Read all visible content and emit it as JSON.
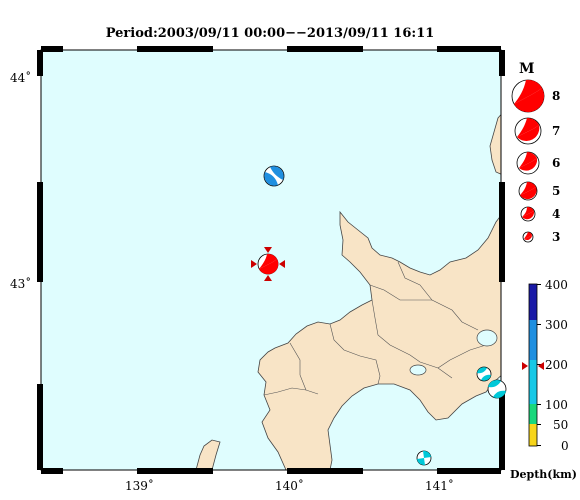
{
  "map": {
    "title": "Period:2003/09/11 00:00−−2013/09/11 16:11",
    "lon_ticks": [
      "139˚",
      "140˚",
      "141˚"
    ],
    "lat_ticks": [
      "44˚",
      "43˚"
    ],
    "colors": {
      "sea": "#dffdfe",
      "land": "#f8e4c6",
      "coast": "#444444",
      "frame": "#000000",
      "mechanism_red": "#ff0000",
      "mechanism_blue": "#1f8fe0",
      "mechanism_cyan": "#00c8d8"
    }
  },
  "magnitude_legend": {
    "title": "M",
    "labels": [
      "8",
      "7",
      "6",
      "5",
      "4",
      "3"
    ]
  },
  "depth_legend": {
    "title": "Depth(km)",
    "labels": [
      "400",
      "300",
      "200",
      "100",
      "50",
      "0"
    ],
    "colors": {
      "0-50": "#f7d51b",
      "50-100": "#19d87c",
      "100-200": "#17c8e6",
      "200-300": "#1f8fe0",
      "300-400": "#1a1aa6"
    }
  },
  "events": [
    {
      "lon": 139.92,
      "lat": 43.53,
      "depth_class": "200-300",
      "magnitude": 5.5,
      "mechanism": "focal-blue"
    },
    {
      "lon": 139.83,
      "lat": 43.08,
      "depth_class": "0-50",
      "magnitude": 6.0,
      "mechanism": "focal-red",
      "highlighted": true
    },
    {
      "lon": 141.4,
      "lat": 42.54,
      "depth_class": "100-200",
      "magnitude": 4.8,
      "mechanism": "focal-cyan"
    },
    {
      "lon": 141.5,
      "lat": 42.49,
      "depth_class": "100-200",
      "magnitude": 5.2,
      "mechanism": "focal-cyan"
    },
    {
      "lon": 140.93,
      "lat": 42.1,
      "depth_class": "100-200",
      "magnitude": 4.5,
      "mechanism": "focal-cyan"
    }
  ]
}
